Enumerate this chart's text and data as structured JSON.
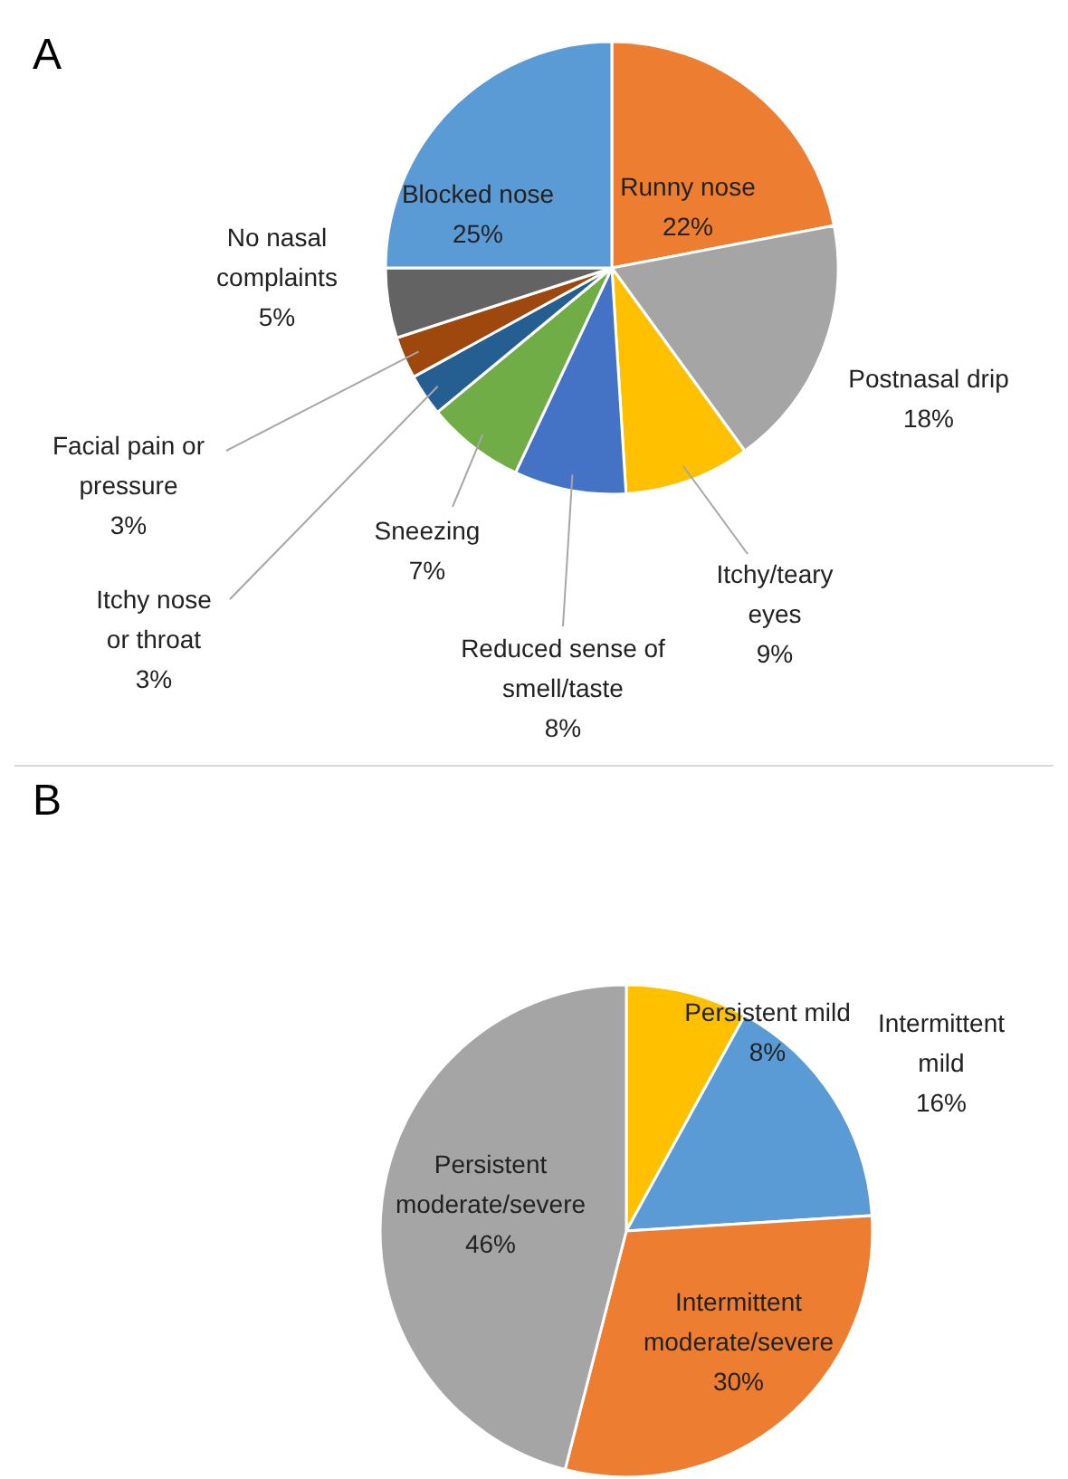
{
  "chart_data": [
    {
      "type": "pie",
      "title": "A",
      "categories": [
        "Runny nose",
        "Postnasal drip",
        "Itchy/teary eyes",
        "Reduced sense of smell/taste",
        "Sneezing",
        "Itchy nose or throat",
        "Facial pain or pressure",
        "No nasal complaints",
        "Blocked nose"
      ],
      "values": [
        22,
        18,
        9,
        8,
        7,
        3,
        3,
        5,
        25
      ],
      "colors": [
        "#ed7d31",
        "#a5a5a5",
        "#ffc000",
        "#4472c4",
        "#70ad47",
        "#255e91",
        "#9e480e",
        "#636363",
        "#5b9bd5"
      ],
      "value_labels": [
        "22%",
        "18%",
        "9%",
        "8%",
        "7%",
        "3%",
        "3%",
        "5%",
        "25%"
      ]
    },
    {
      "type": "pie",
      "title": "B",
      "categories": [
        "Persistent mild",
        "Intermittent mild",
        "Intermittent moderate/severe",
        "Persistent moderate/severe"
      ],
      "values": [
        8,
        16,
        30,
        46
      ],
      "colors": [
        "#ffc000",
        "#5b9bd5",
        "#ed7d31",
        "#a5a5a5"
      ],
      "value_labels": [
        "8%",
        "16%",
        "30%",
        "46%"
      ]
    }
  ]
}
